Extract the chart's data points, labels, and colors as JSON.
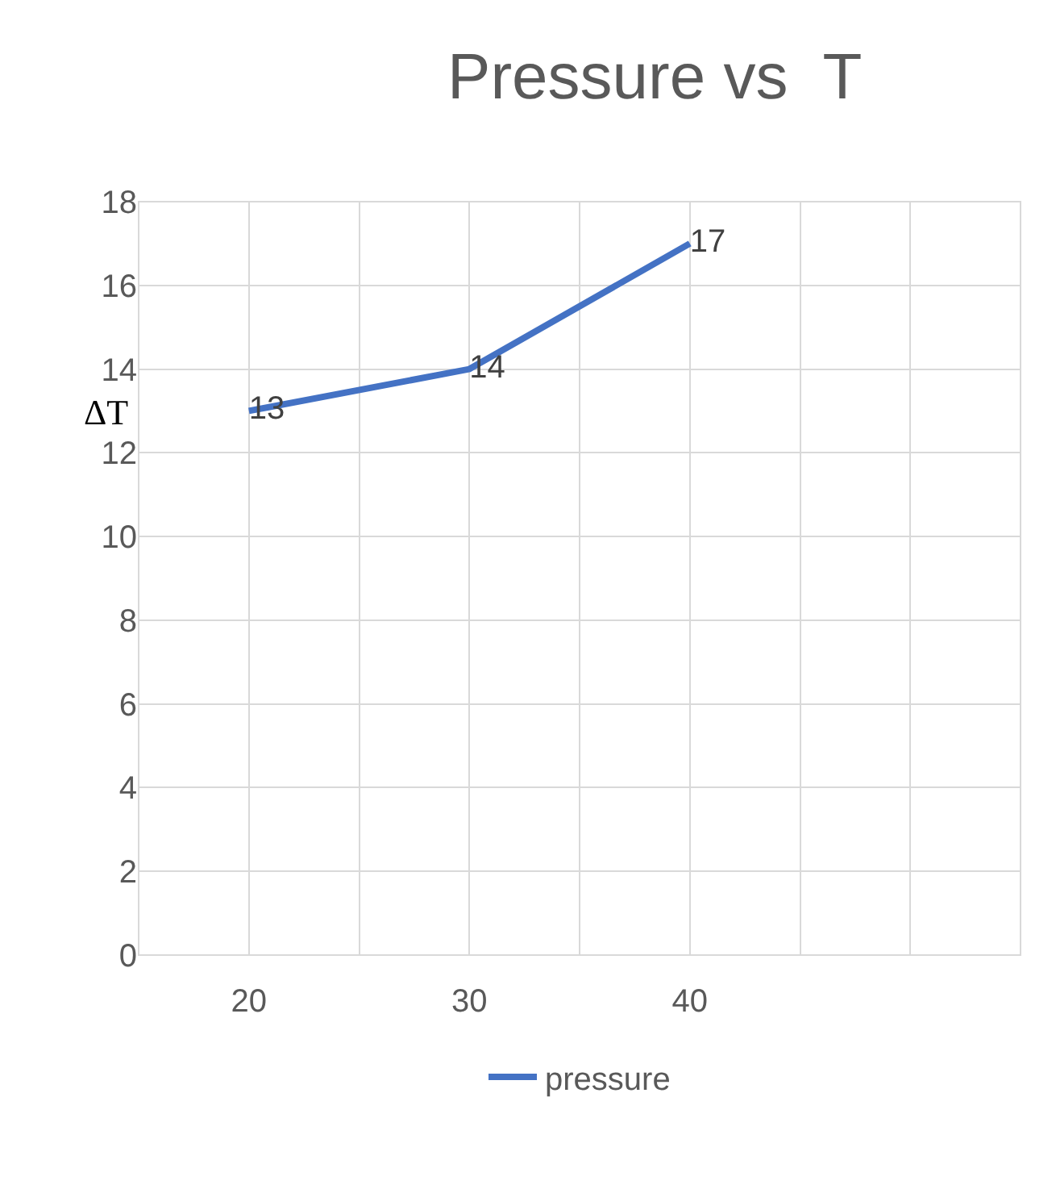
{
  "chart_data": {
    "type": "line",
    "title": "Pressure vs  T",
    "ylabel": "ΔT",
    "x": [
      20,
      30,
      40
    ],
    "series": [
      {
        "name": "pressure",
        "color": "#4472c4",
        "values": [
          13,
          14,
          17
        ]
      }
    ],
    "xlim": [
      15,
      55
    ],
    "xticks": [
      {
        "value": 15,
        "label": null
      },
      20,
      {
        "value": 25,
        "label": null
      },
      30,
      {
        "value": 35,
        "label": null
      },
      40,
      {
        "value": 45,
        "label": null
      },
      {
        "value": 50,
        "label": null
      },
      {
        "value": 55,
        "label": null
      }
    ],
    "ylim": [
      0,
      18
    ],
    "yticks": [
      0,
      2,
      4,
      6,
      8,
      10,
      12,
      14,
      16,
      18
    ],
    "grid": true,
    "legend": "bottom",
    "data_labels": true,
    "marker": "none",
    "line_style": "solid"
  }
}
